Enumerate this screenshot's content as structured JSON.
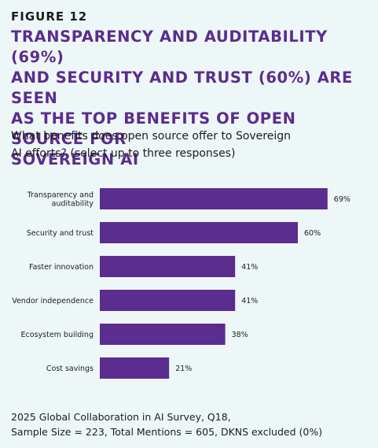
{
  "figure": {
    "label": "FIGURE 12"
  },
  "header": {
    "title": "TRANSPARENCY AND AUDITABILITY (69%)\nAND SECURITY AND TRUST (60%) ARE SEEN\nAS THE TOP BENEFITS OF OPEN SOURCE FOR\nSOVEREIGN AI",
    "subtitle": "What benefits does open source offer to Sovereign\nAI efforts? (select up to three responses)"
  },
  "footer": {
    "source": "2025 Global Collaboration in AI Survey, Q18,\nSample Size = 223, Total Mentions = 605, DKNS excluded (0%)"
  },
  "colors": {
    "bar": "#5b2d8e",
    "title": "#5b2d8e",
    "background": "#eef7f7"
  },
  "chart_data": {
    "type": "bar",
    "orientation": "horizontal",
    "categories": [
      [
        "Transparency and",
        "auditability"
      ],
      [
        "Security and trust"
      ],
      [
        "Faster innovation"
      ],
      [
        "Vendor independence"
      ],
      [
        "Ecosystem building"
      ],
      [
        "Cost savings"
      ]
    ],
    "values": [
      69,
      60,
      41,
      41,
      38,
      21
    ],
    "value_labels": [
      "69%",
      "60%",
      "41%",
      "41%",
      "38%",
      "21%"
    ],
    "xlim": [
      0,
      100
    ],
    "grid": false
  }
}
